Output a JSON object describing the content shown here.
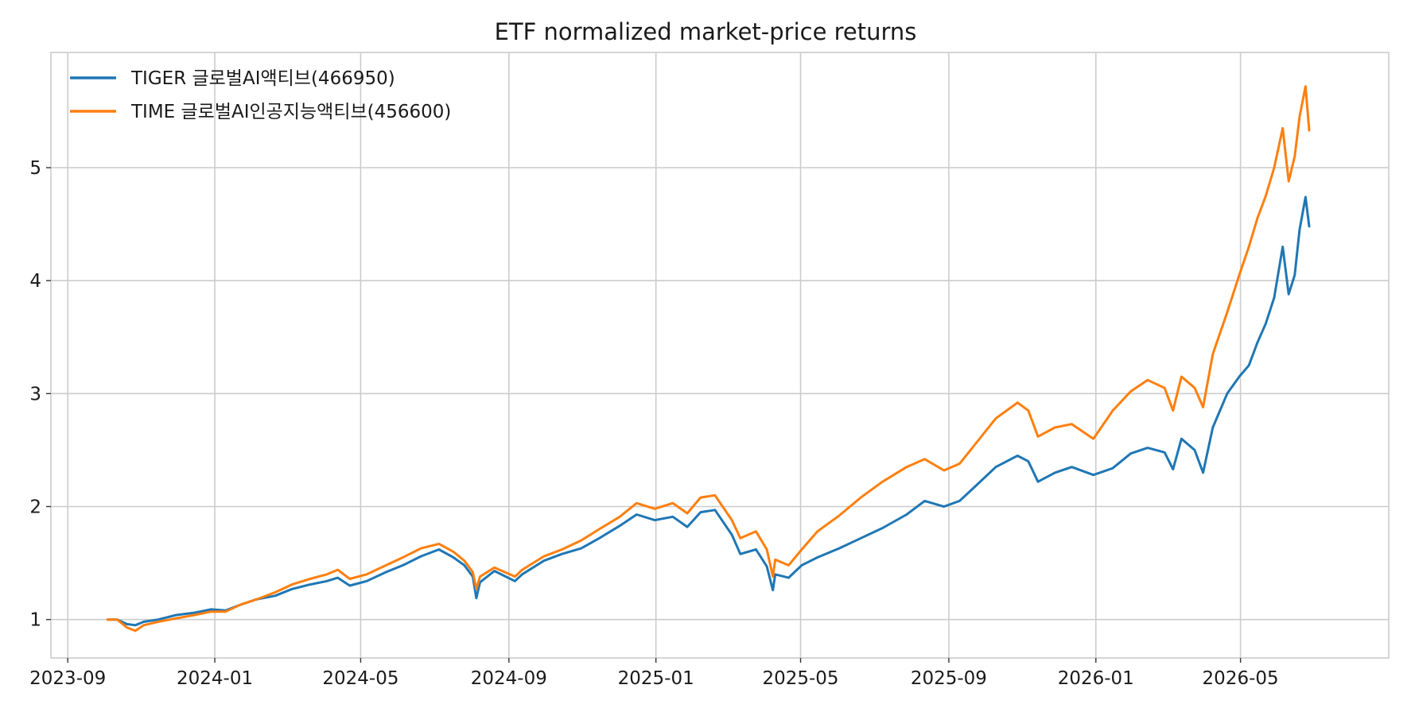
{
  "chart_data": {
    "type": "line",
    "title": "ETF normalized market-price returns",
    "xlabel": "",
    "ylabel": "",
    "x_axis_type": "date",
    "xlim": [
      "2023-08-18",
      "2026-09-01"
    ],
    "ylim": [
      0.66,
      6.02
    ],
    "x_ticks": [
      "2023-09",
      "2024-01",
      "2024-05",
      "2024-09",
      "2025-01",
      "2025-05",
      "2025-09",
      "2026-01",
      "2026-05"
    ],
    "y_ticks": [
      1,
      2,
      3,
      4,
      5
    ],
    "grid": true,
    "legend_position": "top-left",
    "series": [
      {
        "name": "TIGER 글로벌AI액티브(466950)",
        "color": "#1f77b4",
        "points": [
          [
            "2023-10-04",
            1.0
          ],
          [
            "2023-10-12",
            1.0
          ],
          [
            "2023-10-20",
            0.96
          ],
          [
            "2023-10-27",
            0.95
          ],
          [
            "2023-11-03",
            0.98
          ],
          [
            "2023-11-15",
            1.0
          ],
          [
            "2023-11-30",
            1.04
          ],
          [
            "2023-12-15",
            1.06
          ],
          [
            "2023-12-29",
            1.09
          ],
          [
            "2024-01-10",
            1.08
          ],
          [
            "2024-01-22",
            1.13
          ],
          [
            "2024-02-05",
            1.18
          ],
          [
            "2024-02-20",
            1.21
          ],
          [
            "2024-03-05",
            1.27
          ],
          [
            "2024-03-20",
            1.31
          ],
          [
            "2024-04-03",
            1.34
          ],
          [
            "2024-04-12",
            1.37
          ],
          [
            "2024-04-22",
            1.3
          ],
          [
            "2024-05-06",
            1.34
          ],
          [
            "2024-05-22",
            1.42
          ],
          [
            "2024-06-05",
            1.48
          ],
          [
            "2024-06-20",
            1.56
          ],
          [
            "2024-07-05",
            1.62
          ],
          [
            "2024-07-17",
            1.55
          ],
          [
            "2024-07-26",
            1.48
          ],
          [
            "2024-08-02",
            1.38
          ],
          [
            "2024-08-05",
            1.19
          ],
          [
            "2024-08-08",
            1.33
          ],
          [
            "2024-08-20",
            1.43
          ],
          [
            "2024-09-06",
            1.34
          ],
          [
            "2024-09-12",
            1.4
          ],
          [
            "2024-09-30",
            1.52
          ],
          [
            "2024-10-15",
            1.58
          ],
          [
            "2024-10-31",
            1.63
          ],
          [
            "2024-11-15",
            1.72
          ],
          [
            "2024-12-02",
            1.83
          ],
          [
            "2024-12-16",
            1.93
          ],
          [
            "2024-12-31",
            1.88
          ],
          [
            "2025-01-15",
            1.91
          ],
          [
            "2025-01-27",
            1.82
          ],
          [
            "2025-02-07",
            1.95
          ],
          [
            "2025-02-19",
            1.97
          ],
          [
            "2025-03-05",
            1.75
          ],
          [
            "2025-03-12",
            1.58
          ],
          [
            "2025-03-25",
            1.62
          ],
          [
            "2025-04-03",
            1.47
          ],
          [
            "2025-04-08",
            1.26
          ],
          [
            "2025-04-10",
            1.4
          ],
          [
            "2025-04-21",
            1.37
          ],
          [
            "2025-05-02",
            1.48
          ],
          [
            "2025-05-15",
            1.55
          ],
          [
            "2025-06-02",
            1.63
          ],
          [
            "2025-06-20",
            1.72
          ],
          [
            "2025-07-08",
            1.81
          ],
          [
            "2025-07-28",
            1.93
          ],
          [
            "2025-08-12",
            2.05
          ],
          [
            "2025-08-28",
            2.0
          ],
          [
            "2025-09-10",
            2.05
          ],
          [
            "2025-09-25",
            2.2
          ],
          [
            "2025-10-10",
            2.35
          ],
          [
            "2025-10-28",
            2.45
          ],
          [
            "2025-11-06",
            2.4
          ],
          [
            "2025-11-14",
            2.22
          ],
          [
            "2025-11-28",
            2.3
          ],
          [
            "2025-12-12",
            2.35
          ],
          [
            "2025-12-30",
            2.28
          ],
          [
            "2026-01-15",
            2.34
          ],
          [
            "2026-01-30",
            2.47
          ],
          [
            "2026-02-13",
            2.52
          ],
          [
            "2026-02-27",
            2.48
          ],
          [
            "2026-03-06",
            2.33
          ],
          [
            "2026-03-13",
            2.6
          ],
          [
            "2026-03-24",
            2.5
          ],
          [
            "2026-03-31",
            2.3
          ],
          [
            "2026-04-08",
            2.7
          ],
          [
            "2026-04-20",
            3.0
          ],
          [
            "2026-04-30",
            3.15
          ],
          [
            "2026-05-08",
            3.25
          ],
          [
            "2026-05-15",
            3.45
          ],
          [
            "2026-05-22",
            3.62
          ],
          [
            "2026-05-29",
            3.85
          ],
          [
            "2026-06-05",
            4.3
          ],
          [
            "2026-06-10",
            3.88
          ],
          [
            "2026-06-15",
            4.05
          ],
          [
            "2026-06-19",
            4.45
          ],
          [
            "2026-06-24",
            4.74
          ],
          [
            "2026-06-27",
            4.48
          ]
        ]
      },
      {
        "name": "TIME 글로벌AI인공지능액티브(456600)",
        "color": "#ff7f0e",
        "points": [
          [
            "2023-10-04",
            1.0
          ],
          [
            "2023-10-12",
            1.0
          ],
          [
            "2023-10-20",
            0.93
          ],
          [
            "2023-10-27",
            0.9
          ],
          [
            "2023-11-03",
            0.95
          ],
          [
            "2023-11-15",
            0.98
          ],
          [
            "2023-11-30",
            1.01
          ],
          [
            "2023-12-15",
            1.04
          ],
          [
            "2023-12-29",
            1.07
          ],
          [
            "2024-01-10",
            1.07
          ],
          [
            "2024-01-22",
            1.13
          ],
          [
            "2024-02-05",
            1.18
          ],
          [
            "2024-02-20",
            1.24
          ],
          [
            "2024-03-05",
            1.31
          ],
          [
            "2024-03-20",
            1.36
          ],
          [
            "2024-04-03",
            1.4
          ],
          [
            "2024-04-12",
            1.44
          ],
          [
            "2024-04-22",
            1.36
          ],
          [
            "2024-05-06",
            1.4
          ],
          [
            "2024-05-22",
            1.48
          ],
          [
            "2024-06-05",
            1.55
          ],
          [
            "2024-06-20",
            1.63
          ],
          [
            "2024-07-05",
            1.67
          ],
          [
            "2024-07-17",
            1.6
          ],
          [
            "2024-07-26",
            1.52
          ],
          [
            "2024-08-02",
            1.42
          ],
          [
            "2024-08-05",
            1.27
          ],
          [
            "2024-08-08",
            1.38
          ],
          [
            "2024-08-20",
            1.46
          ],
          [
            "2024-09-06",
            1.38
          ],
          [
            "2024-09-12",
            1.44
          ],
          [
            "2024-09-30",
            1.56
          ],
          [
            "2024-10-15",
            1.62
          ],
          [
            "2024-10-31",
            1.7
          ],
          [
            "2024-11-15",
            1.8
          ],
          [
            "2024-12-02",
            1.91
          ],
          [
            "2024-12-16",
            2.03
          ],
          [
            "2024-12-31",
            1.98
          ],
          [
            "2025-01-15",
            2.03
          ],
          [
            "2025-01-27",
            1.94
          ],
          [
            "2025-02-07",
            2.08
          ],
          [
            "2025-02-19",
            2.1
          ],
          [
            "2025-03-05",
            1.88
          ],
          [
            "2025-03-12",
            1.72
          ],
          [
            "2025-03-25",
            1.78
          ],
          [
            "2025-04-03",
            1.62
          ],
          [
            "2025-04-08",
            1.38
          ],
          [
            "2025-04-10",
            1.53
          ],
          [
            "2025-04-21",
            1.48
          ],
          [
            "2025-05-02",
            1.62
          ],
          [
            "2025-05-15",
            1.78
          ],
          [
            "2025-06-02",
            1.92
          ],
          [
            "2025-06-20",
            2.08
          ],
          [
            "2025-07-08",
            2.22
          ],
          [
            "2025-07-28",
            2.35
          ],
          [
            "2025-08-12",
            2.42
          ],
          [
            "2025-08-28",
            2.32
          ],
          [
            "2025-09-10",
            2.38
          ],
          [
            "2025-09-25",
            2.58
          ],
          [
            "2025-10-10",
            2.78
          ],
          [
            "2025-10-28",
            2.92
          ],
          [
            "2025-11-06",
            2.85
          ],
          [
            "2025-11-14",
            2.62
          ],
          [
            "2025-11-28",
            2.7
          ],
          [
            "2025-12-12",
            2.73
          ],
          [
            "2025-12-30",
            2.6
          ],
          [
            "2026-01-15",
            2.85
          ],
          [
            "2026-01-30",
            3.02
          ],
          [
            "2026-02-13",
            3.12
          ],
          [
            "2026-02-27",
            3.05
          ],
          [
            "2026-03-06",
            2.85
          ],
          [
            "2026-03-13",
            3.15
          ],
          [
            "2026-03-24",
            3.05
          ],
          [
            "2026-03-31",
            2.88
          ],
          [
            "2026-04-08",
            3.35
          ],
          [
            "2026-04-20",
            3.72
          ],
          [
            "2026-04-30",
            4.05
          ],
          [
            "2026-05-08",
            4.3
          ],
          [
            "2026-05-15",
            4.55
          ],
          [
            "2026-05-22",
            4.75
          ],
          [
            "2026-05-29",
            5.0
          ],
          [
            "2026-06-05",
            5.35
          ],
          [
            "2026-06-10",
            4.88
          ],
          [
            "2026-06-15",
            5.1
          ],
          [
            "2026-06-19",
            5.45
          ],
          [
            "2026-06-24",
            5.72
          ],
          [
            "2026-06-27",
            5.33
          ]
        ]
      }
    ]
  }
}
